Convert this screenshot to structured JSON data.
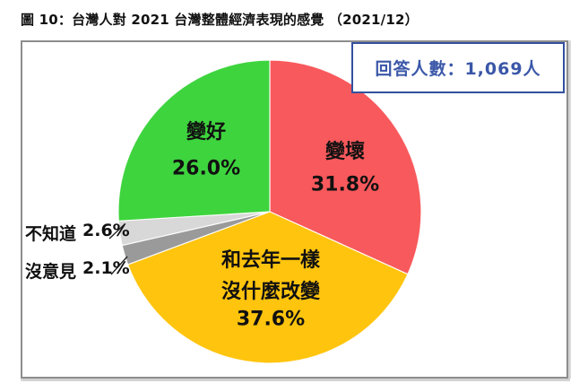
{
  "header": {
    "figure_title": "圖 10：台灣人對 2021 台灣整體經濟表現的感覺 （2021/12）"
  },
  "respondents": {
    "label": "回答人數：1,069人"
  },
  "chart_data": {
    "type": "pie",
    "title": "圖 10：台灣人對 2021 台灣整體經濟表現的感覺 （2021/12）",
    "respondents_note": "回答人數：1,069人",
    "direction": "clockwise",
    "start_angle_deg": 0,
    "legend_position": "labels-on-slices",
    "slices": [
      {
        "name": "變壞",
        "value": 31.8,
        "pct_label": "31.8%",
        "color": "#F8595C"
      },
      {
        "name": "和去年一樣沒什麼改變",
        "label_line1": "和去年一樣",
        "label_line2": "沒什麼改變",
        "value": 37.6,
        "pct_label": "37.6%",
        "color": "#FFC40D"
      },
      {
        "name": "沒意見",
        "value": 2.1,
        "pct_label": "2.1%",
        "color": "#9A9A9A"
      },
      {
        "name": "不知道",
        "value": 2.6,
        "pct_label": "2.6%",
        "color": "#D8D8D8"
      },
      {
        "name": "變好",
        "value": 26.0,
        "pct_label": "26.0%",
        "color": "#3ED43E"
      }
    ]
  },
  "style": {
    "accent_blue": "#3a57a8",
    "box_border_gray": "#8d8d8d"
  }
}
